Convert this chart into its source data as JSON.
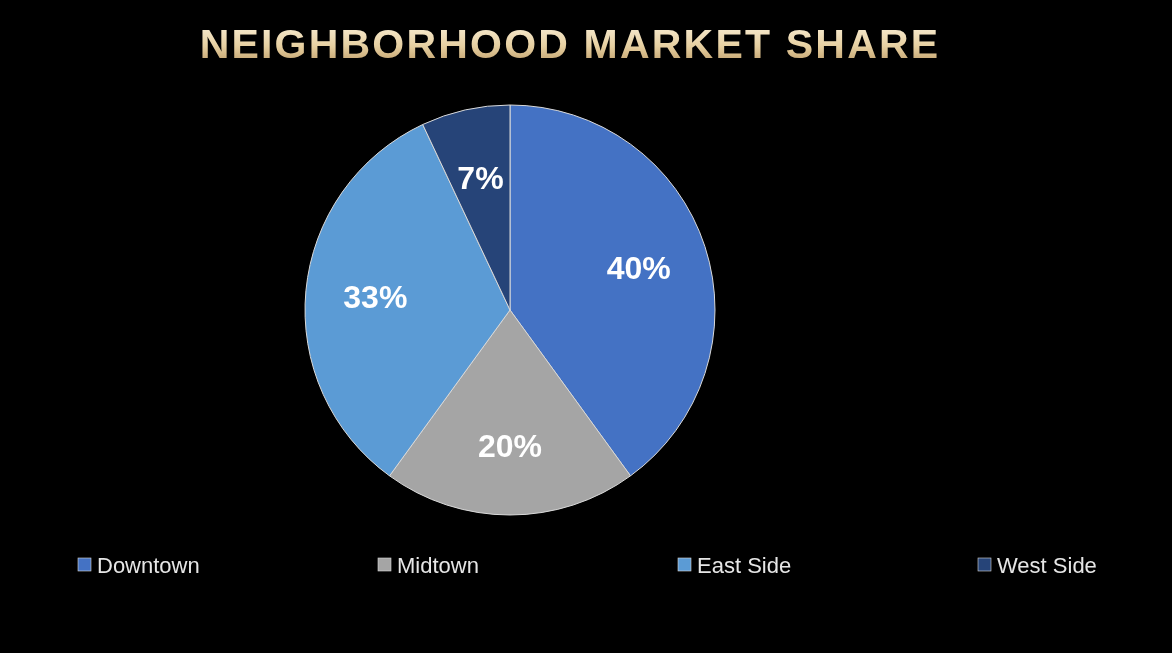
{
  "chart_data": {
    "type": "pie",
    "title": "NEIGHBORHOOD MARKET SHARE",
    "categories": [
      "Downtown",
      "Midtown",
      "East Side",
      "West Side"
    ],
    "values": [
      40,
      20,
      33,
      7
    ],
    "colors": [
      "#4472c4",
      "#a5a5a5",
      "#5b9bd5",
      "#264478"
    ],
    "value_labels": [
      "40%",
      "20%",
      "33%",
      "7%"
    ],
    "legend": "bottom"
  }
}
